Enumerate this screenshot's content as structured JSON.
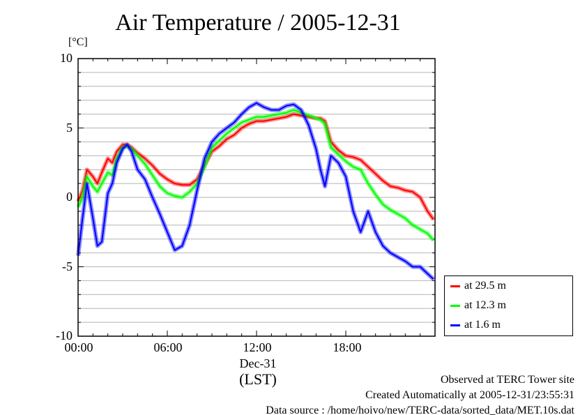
{
  "chart_data": {
    "type": "line",
    "title": "Air Temperature / 2005-12-31",
    "ylabel": "[°C]",
    "xlabel": "(LST)",
    "x_date_label": "Dec-31",
    "ylim": [
      -10,
      10
    ],
    "xlim": [
      0,
      24
    ],
    "y_ticks": [
      "10",
      "5",
      "0",
      "-5",
      "-10"
    ],
    "x_ticks": [
      "00:00",
      "06:00",
      "12:00",
      "18:00"
    ],
    "grid": true,
    "legend_position": "right-bottom",
    "x": [
      0,
      0.3,
      0.6,
      1,
      1.3,
      1.6,
      2,
      2.3,
      2.6,
      3,
      3.3,
      3.6,
      4,
      4.5,
      5,
      5.5,
      6,
      6.5,
      7,
      7.5,
      8,
      8.5,
      9,
      9.5,
      10,
      10.5,
      11,
      11.5,
      12,
      12.5,
      13,
      13.5,
      14,
      14.5,
      15,
      15.5,
      16,
      16.3,
      16.6,
      17,
      17.5,
      18,
      18.5,
      19,
      19.5,
      20,
      20.5,
      21,
      21.5,
      22,
      22.5,
      23,
      23.5,
      23.9
    ],
    "series": [
      {
        "name": "at 29.5 m",
        "color": "#ff0000",
        "values": [
          -0.3,
          0.5,
          2.0,
          1.5,
          1.0,
          1.8,
          2.8,
          2.5,
          3.3,
          3.8,
          3.8,
          3.6,
          3.2,
          2.8,
          2.3,
          1.7,
          1.3,
          1.0,
          0.9,
          0.9,
          1.3,
          2.3,
          3.3,
          3.7,
          4.2,
          4.5,
          5.0,
          5.3,
          5.5,
          5.5,
          5.6,
          5.7,
          5.8,
          6.0,
          5.9,
          5.8,
          5.7,
          5.7,
          5.5,
          4.0,
          3.4,
          3.0,
          2.9,
          2.7,
          2.2,
          1.7,
          1.2,
          0.8,
          0.7,
          0.5,
          0.4,
          0.0,
          -1.0,
          -1.6
        ]
      },
      {
        "name": "at 12.3 m",
        "color": "#00ff00",
        "values": [
          -0.7,
          0.0,
          1.5,
          0.8,
          0.4,
          1.0,
          1.8,
          1.6,
          2.8,
          3.6,
          3.7,
          3.5,
          3.0,
          2.4,
          1.6,
          0.8,
          0.3,
          0.1,
          0.0,
          0.4,
          1.0,
          2.2,
          3.6,
          4.1,
          4.6,
          5.0,
          5.4,
          5.6,
          5.8,
          5.8,
          5.9,
          6.0,
          6.1,
          6.3,
          6.1,
          5.9,
          5.7,
          5.6,
          5.3,
          3.6,
          3.1,
          2.6,
          2.2,
          2.0,
          1.0,
          0.2,
          -0.5,
          -0.9,
          -1.2,
          -1.5,
          -2.0,
          -2.3,
          -2.6,
          -3.1
        ]
      },
      {
        "name": "at 1.6 m",
        "color": "#0000ff",
        "values": [
          -4.2,
          -1.5,
          1.0,
          -1.5,
          -3.5,
          -3.2,
          0.3,
          1.0,
          2.5,
          3.5,
          3.8,
          3.3,
          2.0,
          1.3,
          0.0,
          -1.2,
          -2.5,
          -3.8,
          -3.5,
          -2.0,
          0.5,
          2.8,
          4.0,
          4.6,
          5.0,
          5.4,
          6.0,
          6.5,
          6.8,
          6.5,
          6.3,
          6.3,
          6.6,
          6.7,
          6.3,
          5.2,
          3.5,
          2.0,
          0.8,
          3.0,
          2.5,
          1.5,
          -1.0,
          -2.5,
          -1.0,
          -2.5,
          -3.5,
          -4.0,
          -4.3,
          -4.6,
          -5.0,
          -5.0,
          -5.5,
          -5.9
        ]
      }
    ]
  },
  "footer": {
    "line1": "Observed at TERC Tower site",
    "line2": "Created Automatically at 2005-12-31/23:55:31",
    "line3": "Data source : /home/hoivo/new/TERC-data/sorted_data/MET.10s.dat"
  }
}
